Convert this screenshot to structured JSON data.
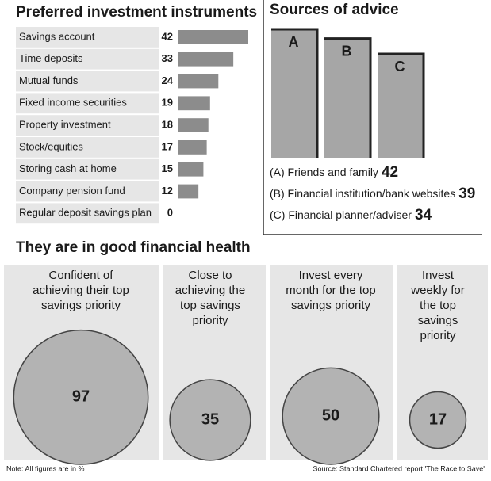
{
  "chart_data": [
    {
      "type": "bar",
      "orientation": "horizontal",
      "title": "Preferred investment instruments",
      "categories": [
        "Savings account",
        "Time deposits",
        "Mutual funds",
        "Fixed income securities",
        "Property investment",
        "Stock/equities",
        "Storing cash at home",
        "Company pension fund",
        "Regular deposit savings plan"
      ],
      "values": [
        42,
        33,
        24,
        19,
        18,
        17,
        15,
        12,
        0
      ],
      "color": "#8c8c8c"
    },
    {
      "type": "bar",
      "orientation": "vertical",
      "title": "Sources of advice",
      "bar_labels": [
        "A",
        "B",
        "C"
      ],
      "categories": [
        "(A) Friends and family",
        "(B) Financial institution/bank websites",
        "(C) Financial planner/adviser"
      ],
      "values": [
        42,
        39,
        34
      ],
      "color": "#a6a6a6"
    },
    {
      "type": "bubble",
      "title": "They are in good financial health",
      "categories": [
        [
          "Confident of",
          "achieving their top",
          "savings priority"
        ],
        [
          "Close to",
          "achieving the",
          "top savings",
          "priority"
        ],
        [
          "Invest every",
          "month for the top",
          "savings priority"
        ],
        [
          "Invest",
          "weekly for",
          "the top",
          "savings",
          "priority"
        ]
      ],
      "values": [
        97,
        35,
        50,
        17
      ],
      "color": "#b3b3b3"
    }
  ],
  "note": "Note: All figures are in %",
  "source": "Source: Standard Chartered report 'The Race to Save'"
}
